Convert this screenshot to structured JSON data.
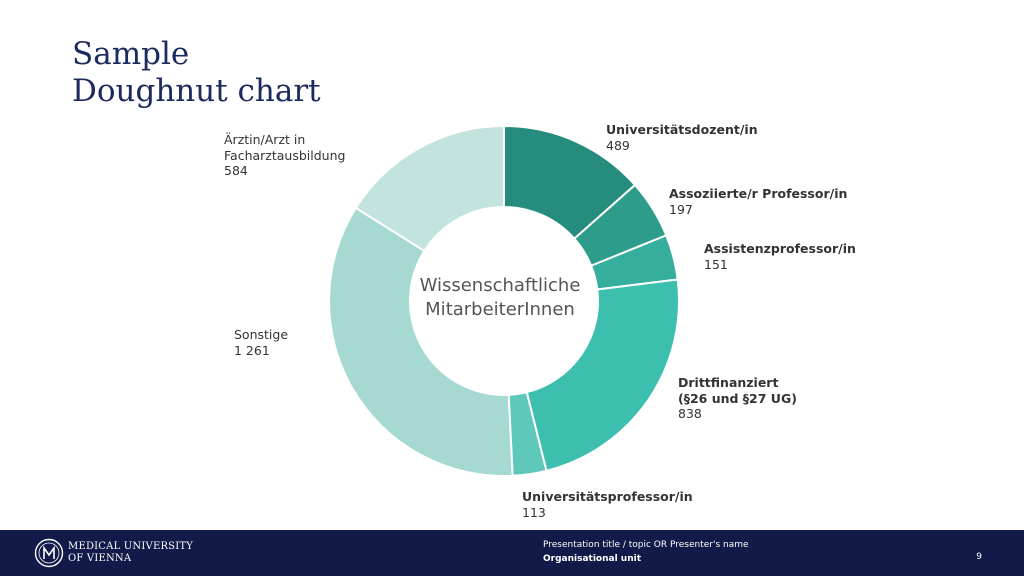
{
  "slide": {
    "title_line1": "Sample",
    "title_line2": "Doughnut chart"
  },
  "chart_data": {
    "type": "doughnut",
    "center_label_line1": "Wissenschaftliche",
    "center_label_line2": "MitarbeiterInnen",
    "segments": [
      {
        "label": "Universitätsdozent/in",
        "value": 489,
        "value_text": "489",
        "color": "#268c7d"
      },
      {
        "label": "Assoziierte/r Professor/in",
        "value": 197,
        "value_text": "197",
        "color": "#2e9c8a"
      },
      {
        "label": "Assistenzprofessor/in",
        "value": 151,
        "value_text": "151",
        "color": "#35ae9d"
      },
      {
        "label": "Drittfinanziert\n(§26 und §27 UG)",
        "value": 838,
        "value_text": "838",
        "color": "#3dbfb0"
      },
      {
        "label": "Universitätsprofessor/in",
        "value": 113,
        "value_text": "113",
        "color": "#5ec9bb"
      },
      {
        "label": "Sonstige",
        "value": 1261,
        "value_text": "1 261",
        "color": "#a5d9d2"
      },
      {
        "label": "Ärztin/Arzt in\nFacharztausbildung",
        "value": 584,
        "value_text": "584",
        "color": "#c3e3df"
      }
    ]
  },
  "footer": {
    "logo_line1": "MEDICAL UNIVERSITY",
    "logo_line2": "OF VIENNA",
    "presentation_title": "Presentation title / topic OR Presenter's name",
    "organisational_unit": "Organisational unit",
    "page_number": "9",
    "background_color": "#121a4a"
  }
}
